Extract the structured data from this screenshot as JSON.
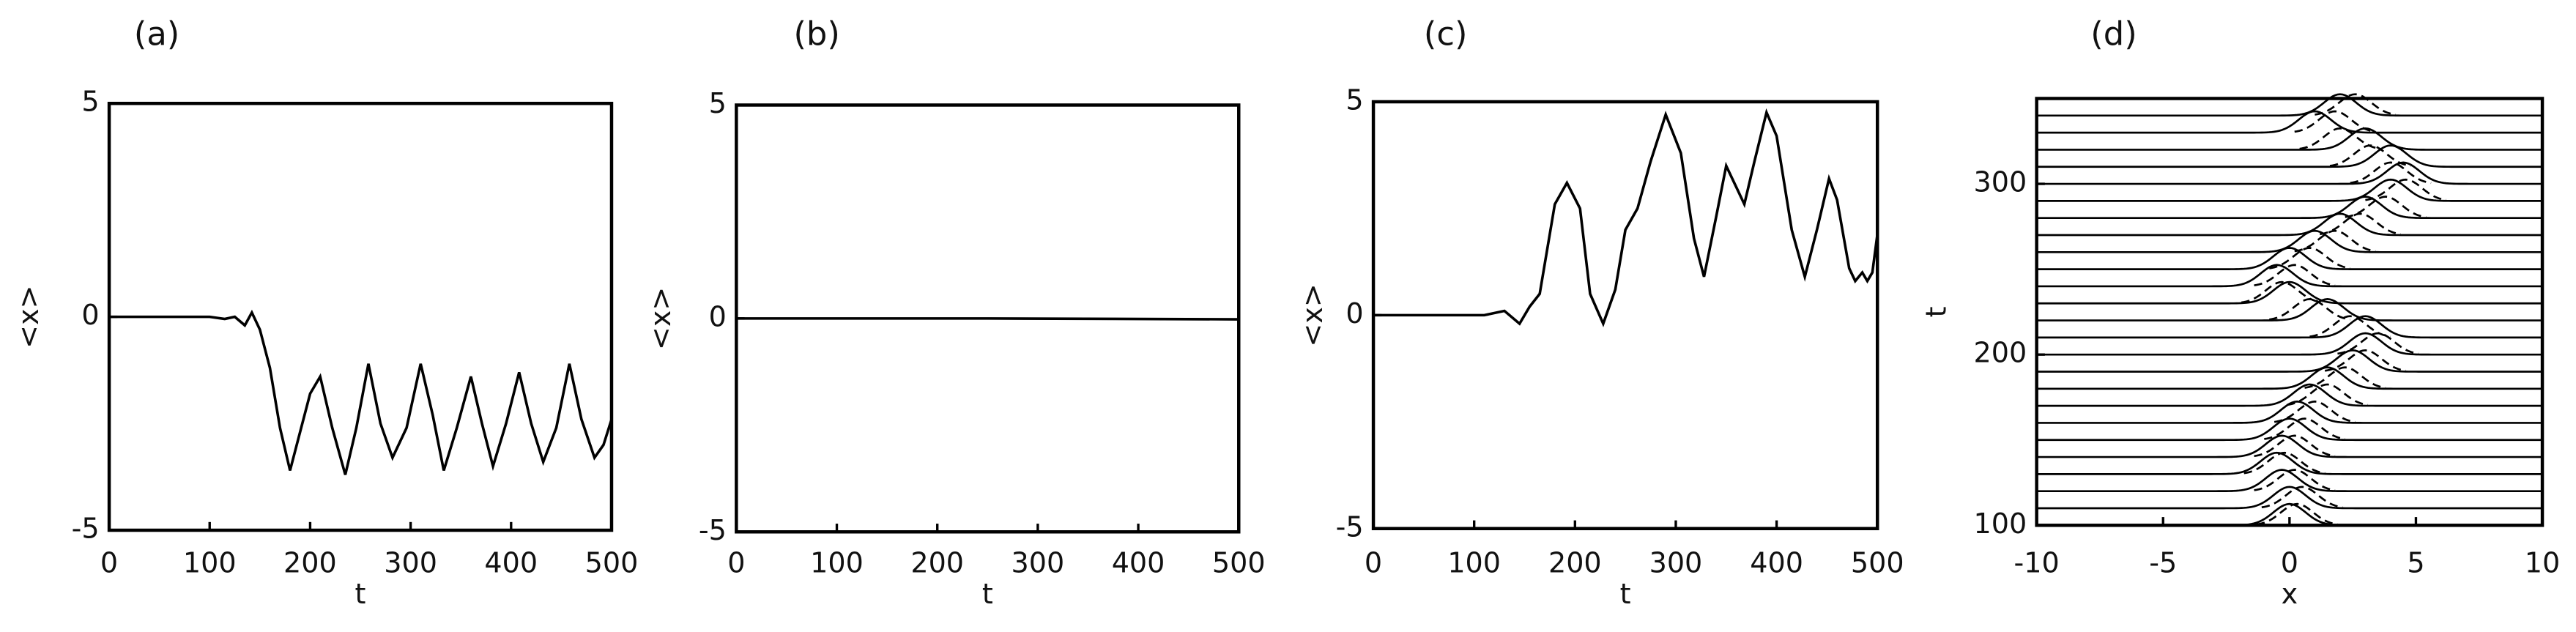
{
  "chart_data": [
    {
      "type": "line",
      "label": "(a)",
      "x_label": "t",
      "y_label": "<x>",
      "color": "#000000",
      "x": [
        0,
        100,
        115,
        125,
        135,
        142,
        150,
        160,
        170,
        180,
        190,
        200,
        210,
        222,
        235,
        246,
        258,
        270,
        282,
        296,
        310,
        322,
        333,
        346,
        360,
        371,
        382,
        395,
        408,
        420,
        432,
        445,
        458,
        470,
        483,
        492,
        500
      ],
      "values": [
        0,
        0,
        -0.05,
        0,
        -0.2,
        0.1,
        -0.3,
        -1.2,
        -2.6,
        -3.6,
        -2.7,
        -1.8,
        -1.4,
        -2.6,
        -3.7,
        -2.6,
        -1.1,
        -2.5,
        -3.3,
        -2.6,
        -1.1,
        -2.3,
        -3.6,
        -2.6,
        -1.4,
        -2.5,
        -3.5,
        -2.5,
        -1.3,
        -2.5,
        -3.4,
        -2.6,
        -1.1,
        -2.4,
        -3.3,
        -3.0,
        -2.4
      ],
      "xlim": [
        0,
        500
      ],
      "xticks": [
        0,
        100,
        200,
        300,
        400,
        500
      ],
      "ylim": [
        -5,
        5
      ],
      "yticks": [
        -5,
        0,
        5
      ]
    },
    {
      "type": "line",
      "label": "(b)",
      "x_label": "t",
      "y_label": "<x>",
      "color": "#000000",
      "x": [
        0,
        250,
        500
      ],
      "values": [
        0,
        0,
        -0.02
      ],
      "xlim": [
        0,
        500
      ],
      "xticks": [
        0,
        100,
        200,
        300,
        400,
        500
      ],
      "ylim": [
        -5,
        5
      ],
      "yticks": [
        -5,
        0,
        5
      ]
    },
    {
      "type": "line",
      "label": "(c)",
      "x_label": "t",
      "y_label": "<x>",
      "color": "#000000",
      "x": [
        0,
        110,
        130,
        145,
        155,
        165,
        180,
        192,
        205,
        215,
        228,
        240,
        250,
        262,
        275,
        290,
        305,
        318,
        328,
        340,
        350,
        360,
        368,
        378,
        390,
        400,
        415,
        428,
        440,
        452,
        460,
        472,
        478,
        485,
        490,
        495,
        500
      ],
      "values": [
        0,
        0,
        0.1,
        -0.2,
        0.2,
        0.5,
        2.6,
        3.1,
        2.5,
        0.5,
        -0.2,
        0.6,
        2.0,
        2.5,
        3.6,
        4.7,
        3.8,
        1.8,
        0.9,
        2.3,
        3.5,
        3.0,
        2.6,
        3.6,
        4.75,
        4.2,
        2.0,
        0.9,
        2.0,
        3.2,
        2.7,
        1.1,
        0.8,
        1.0,
        0.8,
        1.0,
        1.9
      ],
      "xlim": [
        0,
        500
      ],
      "xticks": [
        0,
        100,
        200,
        300,
        400,
        500
      ],
      "ylim": [
        -5,
        5
      ],
      "yticks": [
        -5,
        0,
        5
      ]
    },
    {
      "type": "waterfall",
      "label": "(d)",
      "x_label": "x",
      "y_label": "t",
      "color": "#000000",
      "t": [
        100,
        110,
        120,
        130,
        140,
        150,
        160,
        170,
        180,
        190,
        200,
        210,
        220,
        230,
        240,
        250,
        260,
        270,
        280,
        290,
        300,
        310,
        320,
        330,
        340
      ],
      "peak": [
        0,
        0,
        -0.3,
        -0.5,
        -0.3,
        0,
        0.3,
        0.8,
        1.5,
        2.5,
        3,
        3,
        1.5,
        0,
        -0.5,
        0,
        1,
        2,
        3,
        4,
        4.5,
        4,
        3,
        1,
        2
      ],
      "peak2": [
        0.3,
        0.5,
        0.2,
        -0.2,
        0.2,
        0.6,
        1,
        1.5,
        2.2,
        3,
        3.5,
        2.4,
        0.8,
        -0.3,
        0.2,
        0.8,
        1.8,
        2.8,
        3.8,
        4.6,
        4,
        3.2,
        2,
        1.8,
        2.6
      ],
      "xlim": [
        -10,
        10
      ],
      "xticks": [
        -10,
        -5,
        0,
        5,
        10
      ],
      "ylim": [
        100,
        350
      ],
      "yticks": [
        100,
        200,
        300
      ]
    }
  ]
}
